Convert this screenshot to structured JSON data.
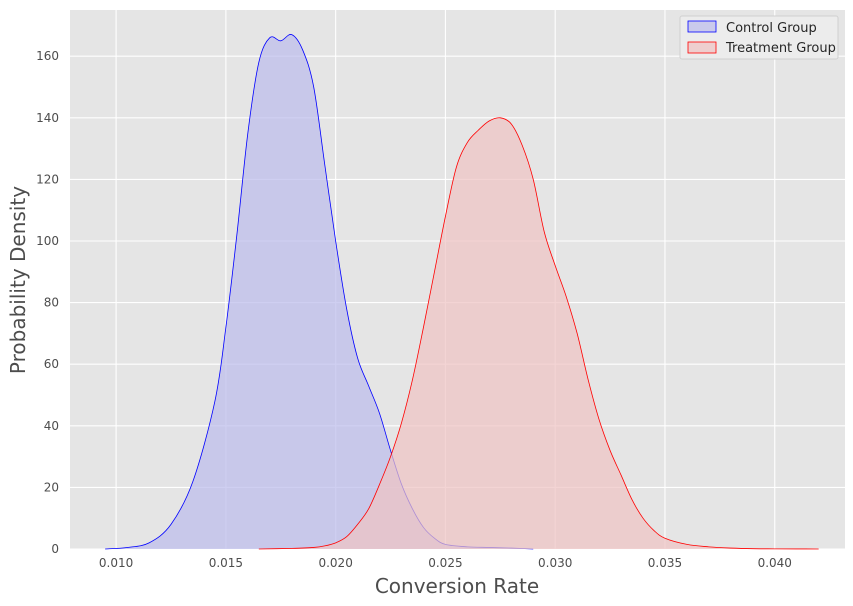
{
  "chart_data": {
    "type": "area",
    "title": "",
    "xlabel": "Conversion Rate",
    "ylabel": "Probability Density",
    "xlim": [
      0.0079,
      0.0432
    ],
    "ylim": [
      0,
      175
    ],
    "x_ticks": [
      0.01,
      0.015,
      0.02,
      0.025,
      0.03,
      0.035,
      0.04
    ],
    "x_tick_labels": [
      "0.010",
      "0.015",
      "0.020",
      "0.025",
      "0.030",
      "0.035",
      "0.040"
    ],
    "y_ticks": [
      0,
      20,
      40,
      60,
      80,
      100,
      120,
      140,
      160
    ],
    "y_tick_labels": [
      "0",
      "20",
      "40",
      "60",
      "80",
      "100",
      "120",
      "140",
      "160"
    ],
    "grid": true,
    "legend_position": "top-right",
    "series": [
      {
        "name": "Control Group",
        "line_color": "#0000ff",
        "fill_color": "#bcbcec",
        "x": [
          0.0095,
          0.0105,
          0.0115,
          0.0125,
          0.0135,
          0.0145,
          0.015,
          0.0155,
          0.016,
          0.0165,
          0.017,
          0.0175,
          0.018,
          0.0185,
          0.019,
          0.0195,
          0.02,
          0.0205,
          0.021,
          0.0215,
          0.022,
          0.0225,
          0.023,
          0.0235,
          0.024,
          0.0245,
          0.025,
          0.026,
          0.027,
          0.028,
          0.029
        ],
        "y": [
          0,
          0.5,
          2,
          8,
          22,
          48,
          72,
          102,
          135,
          158,
          166,
          165,
          167,
          162,
          150,
          125,
          100,
          78,
          62,
          53,
          44,
          32,
          21,
          13,
          7,
          3.5,
          1.5,
          0.7,
          0.5,
          0.3,
          0
        ]
      },
      {
        "name": "Treatment Group",
        "line_color": "#ff0000",
        "fill_color": "#eec4c4",
        "x": [
          0.0165,
          0.018,
          0.019,
          0.0195,
          0.02,
          0.0205,
          0.021,
          0.0215,
          0.022,
          0.0225,
          0.023,
          0.0235,
          0.024,
          0.0245,
          0.025,
          0.0255,
          0.026,
          0.0265,
          0.027,
          0.0275,
          0.028,
          0.0285,
          0.029,
          0.0295,
          0.03,
          0.0305,
          0.031,
          0.0315,
          0.032,
          0.0325,
          0.033,
          0.0335,
          0.034,
          0.0345,
          0.035,
          0.036,
          0.037,
          0.038,
          0.039,
          0.04,
          0.041,
          0.042
        ],
        "y": [
          0,
          0.2,
          0.5,
          1,
          2,
          4,
          8,
          13,
          21,
          30,
          41,
          55,
          72,
          90,
          108,
          124,
          132,
          136,
          139,
          140,
          138,
          131,
          120,
          103,
          92,
          82,
          70,
          55,
          42,
          32,
          24,
          16,
          10,
          6,
          3.5,
          1.5,
          0.7,
          0.3,
          0.1,
          0.05,
          0.02,
          0
        ]
      }
    ]
  }
}
